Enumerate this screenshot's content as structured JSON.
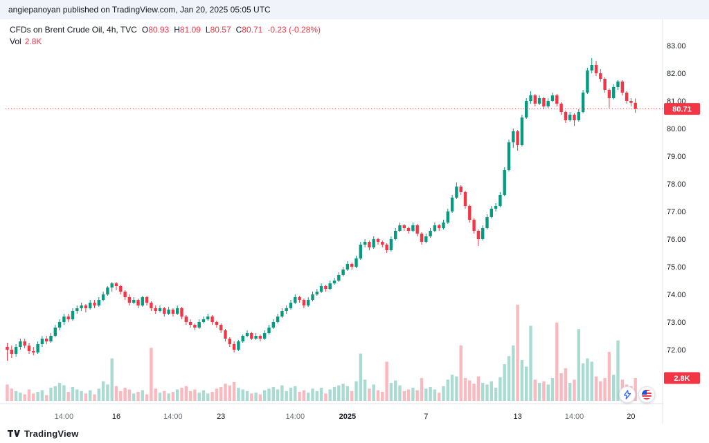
{
  "attribution": "angiepanoyan published on TradingView.com, Jan 20, 2025 05:05 UTC",
  "legend": {
    "title": "CFDs on Brent Crude Oil, 4h, TVC",
    "o_label": "O",
    "o": "80.93",
    "h_label": "H",
    "h": "81.09",
    "l_label": "L",
    "l": "80.57",
    "c_label": "C",
    "c": "80.71",
    "change": "-0.23 (-0.28%)",
    "vol_label": "Vol",
    "vol_value": "2.8K"
  },
  "badges": {
    "last_price": "80.71",
    "last_volume": "2.8K"
  },
  "footer": {
    "brand": "TradingView"
  },
  "colors": {
    "up": "#089981",
    "down": "#f23645",
    "badge_bg": "#f23645",
    "grid": "#e0e3eb",
    "axis_text": "#131722",
    "muted_text": "#686d78",
    "accent_blue": "#2962ff"
  },
  "chart_data": {
    "type": "candlestick",
    "title": "CFDs on Brent Crude Oil, 4h, TVC",
    "symbol": "CFDs on Brent Crude Oil",
    "interval": "4h",
    "exchange": "TVC",
    "legend_position": "top-left",
    "grid": false,
    "last": {
      "open": 80.93,
      "high": 81.09,
      "low": 80.57,
      "close": 80.71,
      "change": -0.23,
      "change_pct": -0.28,
      "volume_k": 2.8,
      "volume_label": "2.8K"
    },
    "y_axis": {
      "min": 71.5,
      "max": 83.3,
      "ticks": [
        83,
        82,
        81,
        80,
        79,
        78,
        77,
        76,
        75,
        74,
        73,
        72
      ]
    },
    "x_axis": {
      "ticks": [
        {
          "label": "14:00",
          "i": 13
        },
        {
          "label": "16",
          "i": 25,
          "major": true
        },
        {
          "label": "14:00",
          "i": 38
        },
        {
          "label": "23",
          "i": 49,
          "major": true
        },
        {
          "label": "14:00",
          "i": 66
        },
        {
          "label": "2025",
          "i": 78,
          "major": true,
          "year": true
        },
        {
          "label": "7",
          "i": 96,
          "major": true
        },
        {
          "label": "13",
          "i": 117,
          "major": true
        },
        {
          "label": "14:00",
          "i": 130
        },
        {
          "label": "20",
          "i": 143,
          "major": true
        }
      ]
    },
    "volumes_in_thousands": true,
    "candles_format": [
      "open",
      "high",
      "low",
      "close",
      "volume_k"
    ],
    "candles": [
      [
        72.1,
        72.25,
        71.6,
        72.0,
        2.0
      ],
      [
        72.0,
        72.15,
        71.7,
        71.85,
        1.5
      ],
      [
        71.85,
        72.2,
        71.75,
        72.1,
        1.2
      ],
      [
        72.1,
        72.4,
        72.0,
        72.3,
        1.0
      ],
      [
        72.3,
        72.4,
        72.05,
        72.15,
        0.8
      ],
      [
        72.15,
        72.25,
        71.85,
        71.95,
        1.4
      ],
      [
        71.95,
        72.1,
        71.8,
        71.9,
        0.9
      ],
      [
        71.9,
        72.3,
        71.85,
        72.2,
        1.1
      ],
      [
        72.2,
        72.5,
        72.1,
        72.4,
        1.3
      ],
      [
        72.4,
        72.5,
        72.2,
        72.3,
        0.7
      ],
      [
        72.3,
        72.6,
        72.25,
        72.5,
        1.6
      ],
      [
        72.5,
        72.9,
        72.45,
        72.8,
        1.8
      ],
      [
        72.8,
        73.1,
        72.7,
        73.0,
        2.2
      ],
      [
        73.0,
        73.3,
        72.9,
        73.2,
        1.9
      ],
      [
        73.2,
        73.3,
        73.0,
        73.1,
        1.1
      ],
      [
        73.1,
        73.5,
        73.05,
        73.4,
        1.7
      ],
      [
        73.4,
        73.6,
        73.3,
        73.5,
        1.4
      ],
      [
        73.5,
        73.7,
        73.4,
        73.6,
        1.2
      ],
      [
        73.6,
        73.65,
        73.35,
        73.5,
        0.9
      ],
      [
        73.5,
        73.8,
        73.45,
        73.7,
        1.3
      ],
      [
        73.7,
        73.8,
        73.5,
        73.6,
        0.8
      ],
      [
        73.6,
        73.9,
        73.55,
        73.8,
        1.5
      ],
      [
        73.8,
        74.1,
        73.75,
        74.0,
        2.4
      ],
      [
        74.0,
        74.3,
        73.95,
        74.25,
        2.0
      ],
      [
        74.25,
        74.45,
        74.1,
        74.4,
        5.2
      ],
      [
        74.4,
        74.45,
        74.15,
        74.3,
        1.8
      ],
      [
        74.3,
        74.35,
        74.0,
        74.1,
        1.2
      ],
      [
        74.1,
        74.15,
        73.8,
        73.9,
        1.6
      ],
      [
        73.9,
        74.0,
        73.6,
        73.7,
        1.4
      ],
      [
        73.7,
        73.9,
        73.65,
        73.8,
        0.9
      ],
      [
        73.8,
        73.85,
        73.5,
        73.6,
        1.1
      ],
      [
        73.6,
        73.95,
        73.55,
        73.9,
        1.3
      ],
      [
        73.9,
        73.95,
        73.6,
        73.7,
        0.8
      ],
      [
        73.7,
        73.75,
        73.4,
        73.5,
        6.5
      ],
      [
        73.5,
        73.6,
        73.3,
        73.4,
        1.5
      ],
      [
        73.4,
        73.6,
        73.35,
        73.5,
        1.0
      ],
      [
        73.5,
        73.55,
        73.2,
        73.3,
        1.2
      ],
      [
        73.3,
        73.55,
        73.25,
        73.45,
        0.9
      ],
      [
        73.45,
        73.5,
        73.2,
        73.3,
        1.1
      ],
      [
        73.3,
        73.6,
        73.25,
        73.5,
        1.4
      ],
      [
        73.5,
        73.55,
        73.1,
        73.2,
        1.6
      ],
      [
        73.2,
        73.25,
        72.9,
        73.0,
        1.8
      ],
      [
        73.0,
        73.1,
        72.8,
        72.9,
        1.2
      ],
      [
        72.9,
        72.95,
        72.7,
        72.8,
        1.4
      ],
      [
        72.8,
        73.1,
        72.75,
        73.0,
        1.0
      ],
      [
        73.0,
        73.2,
        72.95,
        73.1,
        1.3
      ],
      [
        73.1,
        73.3,
        73.05,
        73.2,
        0.9
      ],
      [
        73.2,
        73.25,
        72.9,
        73.0,
        1.1
      ],
      [
        73.0,
        73.05,
        72.8,
        72.9,
        1.5
      ],
      [
        72.9,
        72.95,
        72.6,
        72.7,
        1.7
      ],
      [
        72.7,
        72.75,
        72.3,
        72.4,
        2.1
      ],
      [
        72.4,
        72.45,
        72.1,
        72.2,
        1.9
      ],
      [
        72.2,
        72.3,
        71.9,
        72.0,
        2.3
      ],
      [
        72.0,
        72.35,
        71.95,
        72.3,
        1.6
      ],
      [
        72.3,
        72.55,
        72.25,
        72.5,
        1.4
      ],
      [
        72.5,
        72.7,
        72.45,
        72.6,
        1.2
      ],
      [
        72.6,
        72.65,
        72.35,
        72.4,
        0.9
      ],
      [
        72.4,
        72.6,
        72.35,
        72.5,
        1.0
      ],
      [
        72.5,
        72.55,
        72.3,
        72.4,
        0.8
      ],
      [
        72.4,
        72.7,
        72.35,
        72.6,
        1.3
      ],
      [
        72.6,
        72.9,
        72.55,
        72.8,
        1.5
      ],
      [
        72.8,
        73.1,
        72.75,
        73.0,
        1.7
      ],
      [
        73.0,
        73.3,
        72.95,
        73.2,
        1.4
      ],
      [
        73.2,
        73.5,
        73.15,
        73.4,
        1.9
      ],
      [
        73.4,
        73.6,
        73.3,
        73.5,
        1.2
      ],
      [
        73.5,
        73.8,
        73.45,
        73.7,
        1.6
      ],
      [
        73.7,
        74.0,
        73.65,
        73.9,
        1.8
      ],
      [
        73.9,
        73.95,
        73.7,
        73.8,
        1.1
      ],
      [
        73.8,
        73.85,
        73.5,
        73.6,
        1.3
      ],
      [
        73.6,
        73.9,
        73.55,
        73.8,
        1.0
      ],
      [
        73.8,
        74.1,
        73.75,
        74.0,
        1.5
      ],
      [
        74.0,
        74.2,
        73.95,
        74.1,
        1.2
      ],
      [
        74.1,
        74.4,
        74.05,
        74.3,
        1.6
      ],
      [
        74.3,
        74.35,
        74.1,
        74.2,
        0.9
      ],
      [
        74.2,
        74.5,
        74.15,
        74.4,
        1.4
      ],
      [
        74.4,
        74.6,
        74.35,
        74.5,
        1.7
      ],
      [
        74.5,
        74.8,
        74.45,
        74.7,
        1.9
      ],
      [
        74.7,
        75.0,
        74.65,
        74.9,
        2.1
      ],
      [
        74.9,
        75.2,
        74.85,
        75.1,
        1.8
      ],
      [
        75.1,
        75.15,
        74.9,
        75.0,
        1.2
      ],
      [
        75.0,
        75.4,
        74.95,
        75.3,
        2.4
      ],
      [
        75.3,
        75.9,
        75.25,
        75.8,
        5.8
      ],
      [
        75.8,
        76.0,
        75.7,
        75.9,
        2.6
      ],
      [
        75.9,
        75.95,
        75.6,
        75.7,
        1.5
      ],
      [
        75.7,
        76.1,
        75.65,
        76.0,
        2.0
      ],
      [
        76.0,
        76.05,
        75.8,
        75.9,
        1.3
      ],
      [
        75.9,
        75.95,
        75.7,
        75.8,
        1.1
      ],
      [
        75.8,
        75.85,
        75.5,
        75.6,
        4.8
      ],
      [
        75.6,
        76.1,
        75.55,
        76.0,
        2.2
      ],
      [
        76.0,
        76.4,
        75.95,
        76.3,
        2.5
      ],
      [
        76.3,
        76.6,
        76.25,
        76.5,
        1.9
      ],
      [
        76.5,
        76.55,
        76.3,
        76.4,
        1.2
      ],
      [
        76.4,
        76.45,
        76.2,
        76.3,
        1.4
      ],
      [
        76.3,
        76.6,
        76.25,
        76.5,
        1.6
      ],
      [
        76.5,
        76.55,
        76.1,
        76.2,
        1.3
      ],
      [
        76.2,
        76.25,
        75.8,
        75.9,
        2.8
      ],
      [
        75.9,
        76.2,
        75.85,
        76.1,
        1.5
      ],
      [
        76.1,
        76.4,
        76.05,
        76.3,
        1.7
      ],
      [
        76.3,
        76.6,
        76.25,
        76.5,
        1.4
      ],
      [
        76.5,
        76.55,
        76.3,
        76.4,
        1.0
      ],
      [
        76.4,
        76.7,
        76.35,
        76.6,
        1.8
      ],
      [
        76.6,
        77.1,
        76.55,
        77.0,
        2.6
      ],
      [
        77.0,
        77.6,
        76.95,
        77.5,
        3.2
      ],
      [
        77.5,
        78.05,
        77.45,
        77.9,
        3.0
      ],
      [
        77.9,
        77.95,
        77.6,
        77.7,
        6.8
      ],
      [
        77.7,
        77.75,
        77.1,
        77.2,
        2.8
      ],
      [
        77.2,
        77.25,
        76.6,
        76.7,
        2.5
      ],
      [
        76.7,
        76.75,
        76.2,
        76.3,
        2.1
      ],
      [
        76.3,
        76.35,
        75.75,
        76.0,
        3.0
      ],
      [
        76.0,
        76.5,
        75.95,
        76.4,
        2.2
      ],
      [
        76.4,
        76.9,
        76.35,
        76.8,
        2.0
      ],
      [
        76.8,
        77.2,
        76.75,
        77.1,
        2.4
      ],
      [
        77.1,
        77.3,
        77.0,
        77.2,
        1.6
      ],
      [
        77.2,
        77.7,
        77.15,
        77.6,
        2.9
      ],
      [
        77.6,
        78.6,
        77.55,
        78.5,
        4.5
      ],
      [
        78.5,
        79.6,
        78.45,
        79.5,
        5.5
      ],
      [
        79.5,
        80.0,
        79.3,
        79.9,
        6.8
      ],
      [
        79.9,
        79.95,
        79.2,
        79.4,
        11.8
      ],
      [
        79.4,
        80.5,
        79.35,
        80.4,
        5.0
      ],
      [
        80.4,
        81.1,
        80.35,
        81.0,
        4.2
      ],
      [
        81.0,
        81.35,
        80.9,
        81.2,
        9.2
      ],
      [
        81.2,
        81.25,
        80.8,
        80.9,
        2.6
      ],
      [
        80.9,
        81.2,
        80.85,
        81.1,
        2.2
      ],
      [
        81.1,
        81.15,
        80.7,
        80.8,
        2.4
      ],
      [
        80.8,
        81.1,
        80.75,
        81.0,
        2.0
      ],
      [
        81.0,
        81.3,
        80.95,
        81.2,
        2.8
      ],
      [
        81.2,
        81.25,
        80.8,
        80.9,
        9.6
      ],
      [
        80.9,
        80.95,
        80.5,
        80.6,
        3.4
      ],
      [
        80.6,
        80.65,
        80.2,
        80.3,
        4.0
      ],
      [
        80.3,
        80.6,
        80.25,
        80.5,
        2.2
      ],
      [
        80.5,
        80.55,
        80.1,
        80.3,
        2.6
      ],
      [
        80.3,
        80.7,
        80.25,
        80.6,
        8.8
      ],
      [
        80.6,
        81.4,
        80.55,
        81.3,
        4.6
      ],
      [
        81.3,
        82.2,
        81.25,
        82.1,
        5.2
      ],
      [
        82.1,
        82.55,
        82.0,
        82.3,
        4.8
      ],
      [
        82.3,
        82.45,
        81.9,
        82.0,
        3.0
      ],
      [
        82.0,
        82.15,
        81.7,
        81.8,
        2.4
      ],
      [
        81.8,
        81.85,
        81.3,
        81.4,
        2.8
      ],
      [
        81.4,
        81.45,
        80.75,
        81.1,
        6.0
      ],
      [
        81.1,
        81.6,
        81.05,
        81.5,
        3.2
      ],
      [
        81.5,
        81.75,
        81.4,
        81.7,
        7.4
      ],
      [
        81.7,
        81.75,
        81.2,
        81.3,
        2.6
      ],
      [
        81.3,
        81.35,
        80.9,
        81.0,
        2.0
      ],
      [
        81.0,
        81.1,
        80.8,
        80.93,
        1.8
      ],
      [
        80.93,
        81.09,
        80.57,
        80.71,
        2.8
      ]
    ]
  }
}
